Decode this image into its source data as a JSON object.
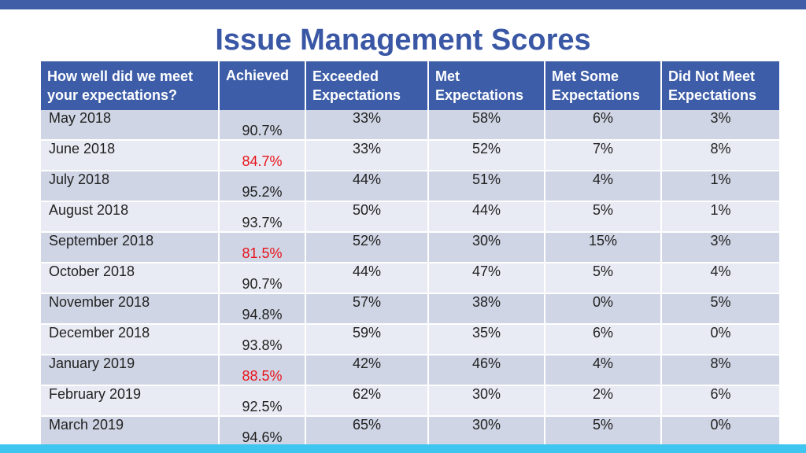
{
  "page": {
    "title": "Issue Management Scores",
    "colors": {
      "top_bar": "#3f5ea7",
      "bottom_bar": "#3ec6f0",
      "title": "#3a57a5",
      "header_bg": "#3d5da8",
      "row_dark": "#cfd5e4",
      "row_light": "#e8ebf3",
      "below_target": "#e8141c"
    }
  },
  "table": {
    "headers": [
      "How well did we meet your expectations?",
      "Achieved",
      "Exceeded Expectations",
      "Met Expectations",
      "Met Some Expectations",
      "Did Not Meet Expectations"
    ],
    "rows": [
      {
        "month": "May 2018",
        "achieved": "90.7%",
        "below_target": false,
        "exceeded": "33%",
        "met": "58%",
        "met_some": "6%",
        "did_not_meet": "3%"
      },
      {
        "month": "June 2018",
        "achieved": "84.7%",
        "below_target": true,
        "exceeded": "33%",
        "met": "52%",
        "met_some": "7%",
        "did_not_meet": "8%"
      },
      {
        "month": "July 2018",
        "achieved": "95.2%",
        "below_target": false,
        "exceeded": "44%",
        "met": "51%",
        "met_some": "4%",
        "did_not_meet": "1%"
      },
      {
        "month": "August 2018",
        "achieved": "93.7%",
        "below_target": false,
        "exceeded": "50%",
        "met": "44%",
        "met_some": "5%",
        "did_not_meet": "1%"
      },
      {
        "month": "September 2018",
        "achieved": "81.5%",
        "below_target": true,
        "exceeded": "52%",
        "met": "30%",
        "met_some": "15%",
        "did_not_meet": "3%"
      },
      {
        "month": "October 2018",
        "achieved": "90.7%",
        "below_target": false,
        "exceeded": "44%",
        "met": "47%",
        "met_some": "5%",
        "did_not_meet": "4%"
      },
      {
        "month": "November 2018",
        "achieved": "94.8%",
        "below_target": false,
        "exceeded": "57%",
        "met": "38%",
        "met_some": "0%",
        "did_not_meet": "5%"
      },
      {
        "month": "December 2018",
        "achieved": "93.8%",
        "below_target": false,
        "exceeded": "59%",
        "met": "35%",
        "met_some": "6%",
        "did_not_meet": "0%"
      },
      {
        "month": "January 2019",
        "achieved": "88.5%",
        "below_target": true,
        "exceeded": "42%",
        "met": "46%",
        "met_some": "4%",
        "did_not_meet": "8%"
      },
      {
        "month": "February 2019",
        "achieved": "92.5%",
        "below_target": false,
        "exceeded": "62%",
        "met": "30%",
        "met_some": "2%",
        "did_not_meet": "6%"
      },
      {
        "month": "March 2019",
        "achieved": "94.6%",
        "below_target": false,
        "exceeded": "65%",
        "met": "30%",
        "met_some": "5%",
        "did_not_meet": "0%"
      }
    ]
  }
}
